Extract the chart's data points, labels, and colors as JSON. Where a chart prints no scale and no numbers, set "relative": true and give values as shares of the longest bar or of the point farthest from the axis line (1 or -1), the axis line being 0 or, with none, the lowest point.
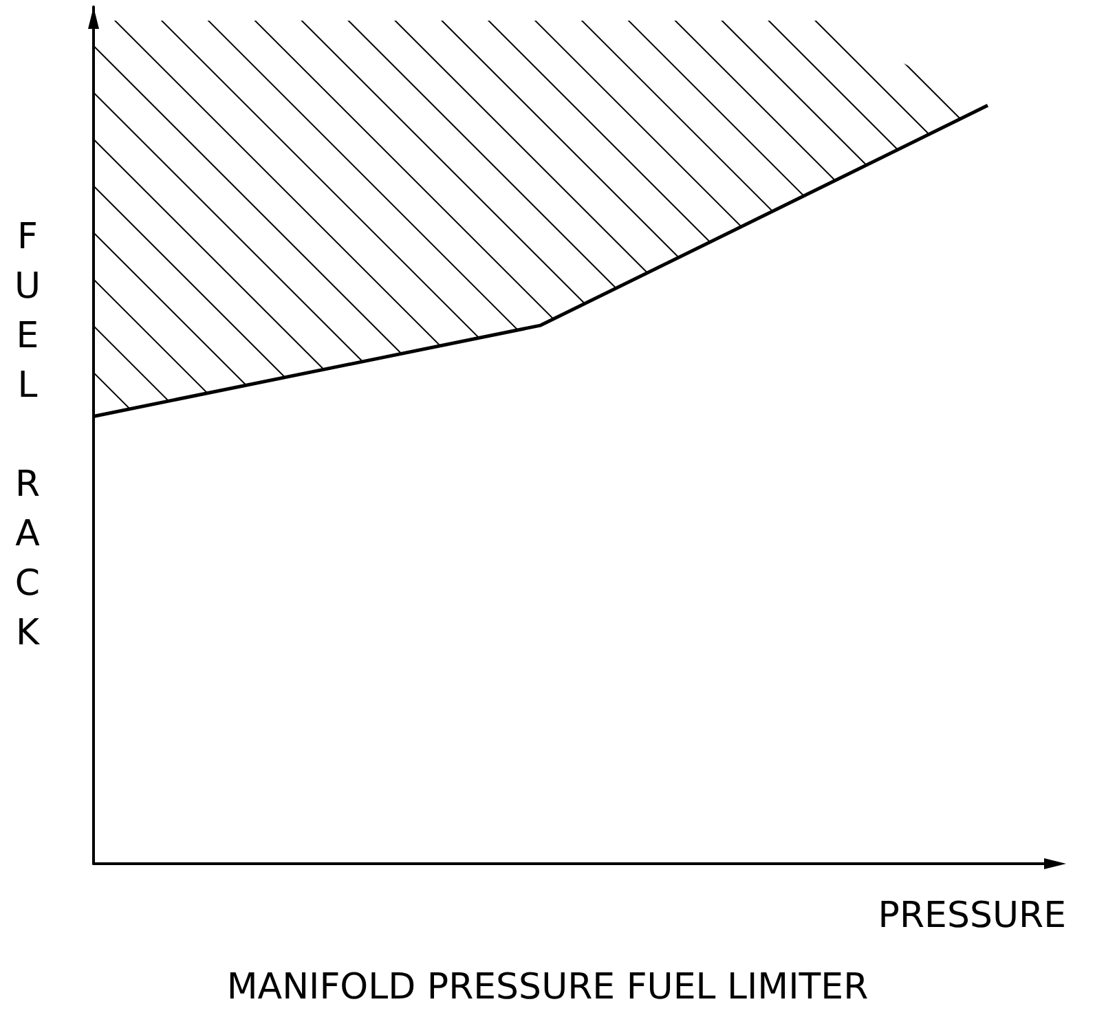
{
  "chart_data": {
    "type": "line",
    "title": "MANIFOLD PRESSURE FUEL LIMITER",
    "xlabel": "PRESSURE",
    "ylabel": "FUEL RACK",
    "relative": true,
    "categories": [
      null,
      null,
      null
    ],
    "series": [
      {
        "color": "#000000",
        "values": [
          0.59,
          0.71,
          1
        ]
      }
    ],
    "grid": false,
    "marker": "none",
    "line_style": "solid"
  }
}
